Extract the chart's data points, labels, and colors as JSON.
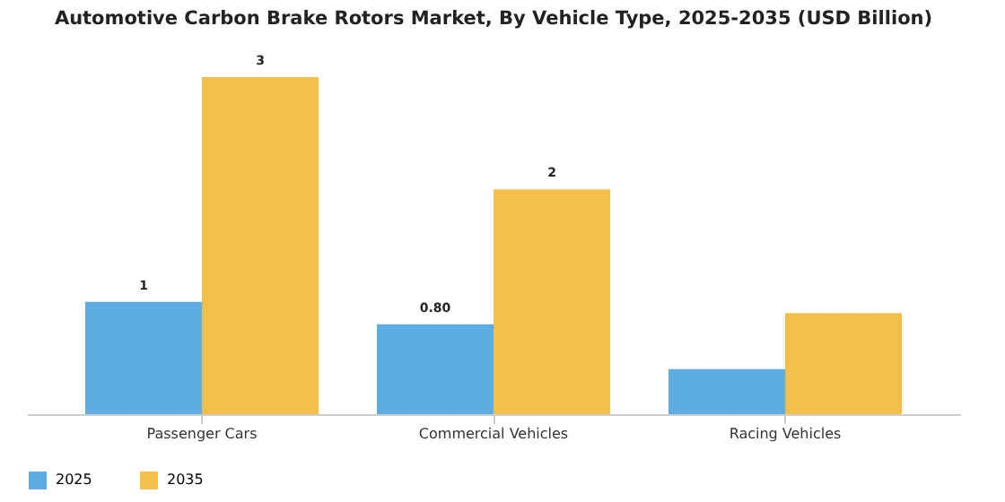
{
  "chart_data": {
    "type": "bar",
    "title": "Automotive Carbon Brake Rotors Market, By Vehicle Type, 2025-2035 (USD Billion)",
    "categories": [
      "Passenger Cars",
      "Commercial Vehicles",
      "Racing Vehicles"
    ],
    "series": [
      {
        "name": "2025",
        "color": "#5dade2",
        "values": [
          1,
          0.8,
          0.4
        ],
        "value_labels": [
          "1",
          "0.80",
          null
        ]
      },
      {
        "name": "2035",
        "color": "#f5c04a",
        "values": [
          3,
          2,
          0.9
        ],
        "value_labels": [
          "3",
          "2",
          null
        ]
      }
    ],
    "legend": "bottom"
  }
}
